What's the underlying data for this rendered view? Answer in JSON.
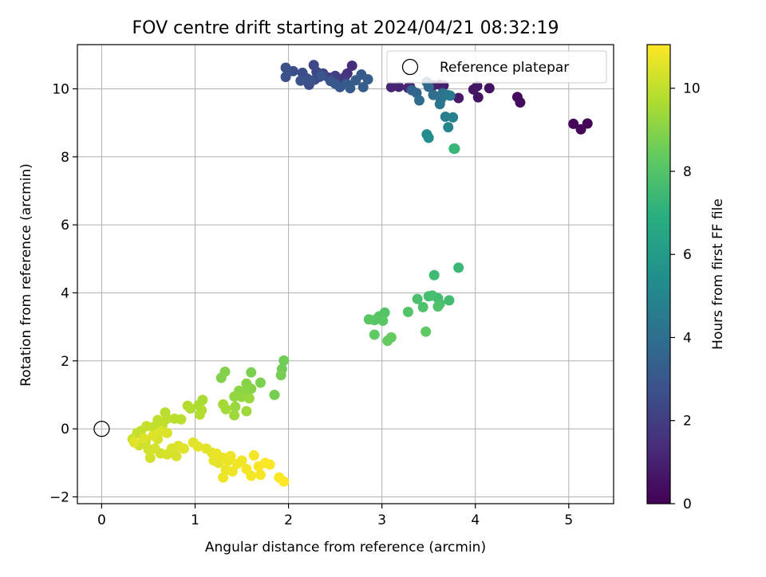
{
  "chart_data": {
    "type": "scatter",
    "title": "FOV centre drift starting at 2024/04/21 08:32:19",
    "xlabel": "Angular distance from reference (arcmin)",
    "ylabel": "Rotation from reference (arcmin)",
    "xlim": [
      -0.26,
      5.48
    ],
    "ylim": [
      -2.2,
      11.3
    ],
    "xticks": [
      0,
      1,
      2,
      3,
      4,
      5
    ],
    "yticks": [
      -2,
      0,
      2,
      4,
      6,
      8,
      10
    ],
    "grid": true,
    "legend": {
      "placement": "top-right",
      "entries": [
        "Reference platepar"
      ]
    },
    "reference_point": {
      "x": 0,
      "y": 0,
      "label": "Reference platepar"
    },
    "colorbar": {
      "label": "Hours from first FF file",
      "range": [
        0,
        11.05
      ],
      "ticks": [
        0,
        2,
        4,
        6,
        8,
        10
      ],
      "colormap": "viridis"
    },
    "points": [
      [
        5.05,
        8.97,
        0.1
      ],
      [
        5.2,
        8.98,
        0.1
      ],
      [
        5.13,
        8.81,
        0.15
      ],
      [
        4.45,
        9.76,
        0.3
      ],
      [
        4.48,
        9.6,
        0.35
      ],
      [
        4.15,
        10.02,
        0.5
      ],
      [
        4.03,
        9.75,
        0.55
      ],
      [
        3.98,
        9.98,
        0.6
      ],
      [
        4.02,
        10.08,
        0.65
      ],
      [
        3.82,
        9.73,
        0.75
      ],
      [
        3.66,
        10.1,
        0.85
      ],
      [
        3.64,
        9.76,
        0.9
      ],
      [
        3.62,
        10.12,
        0.95
      ],
      [
        3.55,
        10.1,
        1.0
      ],
      [
        3.3,
        10.06,
        1.05
      ],
      [
        3.18,
        10.06,
        1.1
      ],
      [
        3.1,
        10.05,
        1.15
      ],
      [
        3.28,
        10.03,
        1.2
      ],
      [
        2.68,
        10.68,
        1.5
      ],
      [
        2.63,
        10.45,
        1.6
      ],
      [
        2.6,
        10.34,
        1.7
      ],
      [
        2.58,
        10.15,
        1.8
      ],
      [
        2.55,
        10.25,
        1.9
      ],
      [
        2.5,
        10.38,
        2.0
      ],
      [
        2.43,
        10.33,
        2.1
      ],
      [
        2.37,
        10.45,
        2.2
      ],
      [
        2.33,
        10.35,
        2.3
      ],
      [
        2.3,
        10.5,
        2.3
      ],
      [
        2.28,
        10.27,
        2.4
      ],
      [
        2.27,
        10.7,
        2.4
      ],
      [
        2.22,
        10.12,
        2.5
      ],
      [
        2.2,
        10.3,
        2.5
      ],
      [
        2.15,
        10.47,
        2.6
      ],
      [
        2.05,
        10.52,
        2.6
      ],
      [
        1.97,
        10.35,
        2.7
      ],
      [
        1.97,
        10.62,
        2.7
      ],
      [
        2.13,
        10.24,
        2.8
      ],
      [
        2.24,
        10.23,
        2.8
      ],
      [
        2.35,
        10.38,
        2.9
      ],
      [
        2.45,
        10.23,
        2.9
      ],
      [
        2.5,
        10.15,
        3.0
      ],
      [
        2.55,
        10.05,
        3.0
      ],
      [
        2.62,
        10.15,
        3.1
      ],
      [
        2.66,
        10.02,
        3.1
      ],
      [
        2.72,
        10.25,
        3.2
      ],
      [
        2.78,
        10.42,
        3.2
      ],
      [
        2.8,
        10.05,
        3.3
      ],
      [
        2.85,
        10.28,
        3.3
      ],
      [
        3.32,
        9.96,
        3.5
      ],
      [
        3.37,
        9.88,
        3.6
      ],
      [
        3.48,
        10.2,
        3.7
      ],
      [
        3.5,
        10.06,
        3.8
      ],
      [
        3.4,
        9.66,
        3.9
      ],
      [
        3.55,
        9.82,
        4.0
      ],
      [
        3.65,
        9.87,
        4.1
      ],
      [
        3.63,
        9.69,
        4.2
      ],
      [
        3.62,
        9.55,
        4.3
      ],
      [
        3.7,
        9.82,
        4.4
      ],
      [
        3.73,
        9.8,
        4.5
      ],
      [
        3.68,
        9.18,
        4.7
      ],
      [
        3.76,
        9.16,
        4.8
      ],
      [
        3.71,
        8.87,
        5.0
      ],
      [
        3.48,
        8.66,
        5.2
      ],
      [
        3.5,
        8.56,
        5.3
      ],
      [
        3.77,
        8.24,
        7.2
      ],
      [
        3.78,
        8.24,
        7.3
      ],
      [
        3.82,
        4.74,
        7.4
      ],
      [
        3.56,
        4.52,
        7.5
      ],
      [
        3.72,
        3.78,
        7.6
      ],
      [
        3.6,
        3.84,
        7.6
      ],
      [
        3.54,
        3.92,
        7.7
      ],
      [
        3.5,
        3.9,
        7.7
      ],
      [
        3.38,
        3.82,
        7.8
      ],
      [
        3.62,
        3.68,
        7.8
      ],
      [
        3.6,
        3.6,
        7.9
      ],
      [
        3.44,
        3.58,
        7.9
      ],
      [
        3.28,
        3.44,
        8.0
      ],
      [
        3.03,
        3.42,
        8.0
      ],
      [
        2.97,
        3.31,
        8.1
      ],
      [
        2.92,
        3.2,
        8.1
      ],
      [
        3.01,
        3.18,
        8.2
      ],
      [
        2.86,
        3.22,
        8.2
      ],
      [
        3.47,
        2.86,
        8.3
      ],
      [
        2.92,
        2.77,
        8.3
      ],
      [
        3.1,
        2.69,
        8.4
      ],
      [
        3.06,
        2.59,
        8.4
      ],
      [
        1.95,
        2.01,
        8.6
      ],
      [
        1.93,
        1.76,
        8.6
      ],
      [
        1.92,
        1.58,
        8.7
      ],
      [
        1.85,
        1.0,
        8.7
      ],
      [
        1.7,
        1.36,
        8.8
      ],
      [
        1.6,
        1.66,
        8.8
      ],
      [
        1.32,
        1.68,
        8.9
      ],
      [
        1.28,
        1.5,
        8.9
      ],
      [
        1.55,
        1.33,
        9.0
      ],
      [
        1.6,
        1.18,
        9.0
      ],
      [
        1.53,
        1.06,
        9.1
      ],
      [
        1.47,
        1.12,
        9.1
      ],
      [
        1.5,
        0.94,
        9.2
      ],
      [
        1.42,
        0.95,
        9.2
      ],
      [
        1.58,
        0.9,
        9.3
      ],
      [
        1.43,
        0.65,
        9.3
      ],
      [
        1.42,
        0.4,
        9.4
      ],
      [
        1.55,
        0.52,
        9.4
      ],
      [
        1.3,
        0.72,
        9.5
      ],
      [
        1.33,
        0.58,
        9.5
      ],
      [
        1.08,
        0.85,
        9.6
      ],
      [
        1.04,
        0.7,
        9.6
      ],
      [
        0.95,
        0.6,
        9.7
      ],
      [
        1.07,
        0.55,
        9.7
      ],
      [
        0.92,
        0.68,
        9.8
      ],
      [
        1.05,
        0.42,
        9.8
      ],
      [
        0.85,
        0.28,
        9.9
      ],
      [
        0.78,
        0.3,
        9.9
      ],
      [
        0.68,
        0.48,
        9.9
      ],
      [
        0.7,
        0.3,
        9.95
      ],
      [
        0.6,
        0.26,
        10.0
      ],
      [
        0.65,
        0.12,
        10.0
      ],
      [
        0.55,
        0.05,
        10.0
      ],
      [
        0.48,
        0.08,
        10.1
      ],
      [
        0.42,
        -0.06,
        10.1
      ],
      [
        0.38,
        -0.12,
        10.1
      ],
      [
        0.33,
        -0.3,
        10.2
      ],
      [
        0.4,
        -0.48,
        10.2
      ],
      [
        0.47,
        -0.38,
        10.2
      ],
      [
        0.5,
        -0.6,
        10.3
      ],
      [
        0.52,
        -0.85,
        10.3
      ],
      [
        0.57,
        -0.58,
        10.3
      ],
      [
        0.6,
        -0.3,
        10.35
      ],
      [
        0.63,
        -0.72,
        10.35
      ],
      [
        0.7,
        -0.75,
        10.4
      ],
      [
        0.75,
        -0.58,
        10.4
      ],
      [
        0.8,
        -0.8,
        10.4
      ],
      [
        0.82,
        -0.5,
        10.45
      ],
      [
        0.7,
        -0.12,
        10.45
      ],
      [
        0.63,
        -0.08,
        10.5
      ],
      [
        0.55,
        -0.2,
        10.5
      ],
      [
        0.45,
        -0.28,
        10.5
      ],
      [
        0.35,
        -0.4,
        10.55
      ],
      [
        0.88,
        -0.58,
        10.55
      ],
      [
        0.98,
        -0.4,
        10.55
      ],
      [
        1.03,
        -0.52,
        10.6
      ],
      [
        1.12,
        -0.58,
        10.6
      ],
      [
        1.18,
        -0.7,
        10.6
      ],
      [
        1.2,
        -0.93,
        10.65
      ],
      [
        1.25,
        -1.0,
        10.65
      ],
      [
        1.23,
        -0.73,
        10.7
      ],
      [
        1.3,
        -0.85,
        10.7
      ],
      [
        1.33,
        -1.2,
        10.7
      ],
      [
        1.3,
        -1.43,
        10.75
      ],
      [
        1.35,
        -0.95,
        10.75
      ],
      [
        1.4,
        -1.25,
        10.8
      ],
      [
        1.38,
        -0.8,
        10.8
      ],
      [
        1.45,
        -1.03,
        10.85
      ],
      [
        1.5,
        -0.93,
        10.85
      ],
      [
        1.55,
        -1.18,
        10.9
      ],
      [
        1.6,
        -1.38,
        10.9
      ],
      [
        1.63,
        -0.78,
        10.9
      ],
      [
        1.68,
        -1.1,
        10.95
      ],
      [
        1.7,
        -1.35,
        10.95
      ],
      [
        1.75,
        -1.0,
        11.0
      ],
      [
        1.8,
        -1.05,
        11.0
      ],
      [
        1.9,
        -1.43,
        11.0
      ],
      [
        1.95,
        -1.55,
        11.05
      ]
    ]
  }
}
